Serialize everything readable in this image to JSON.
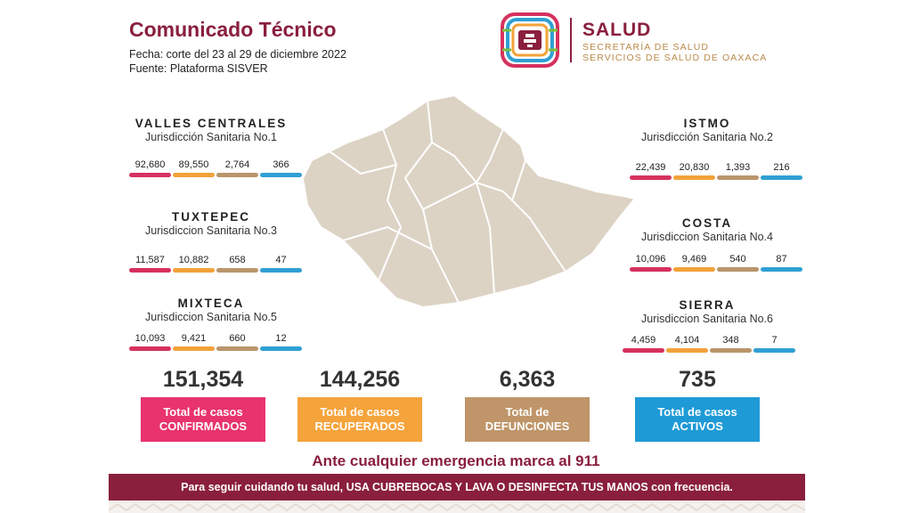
{
  "header": {
    "title": "Comunicado Técnico",
    "fecha": "Fecha: corte del 23 al 29 de diciembre 2022",
    "fuente": "Fuente: Plataforma SISVER"
  },
  "brand": {
    "name": "SALUD",
    "line1": "SECRETARÍA DE SALUD",
    "line2": "SERVICIOS DE SALUD DE OAXACA"
  },
  "regions": [
    {
      "name": "VALLES CENTRALES",
      "jurisdiction": "Jurisdicción Sanitaria No.1",
      "values": [
        "92,680",
        "89,550",
        "2,764",
        "366"
      ]
    },
    {
      "name": "TUXTEPEC",
      "jurisdiction": "Jurisdiccion Sanitaria No.3",
      "values": [
        "11,587",
        "10,882",
        "658",
        "47"
      ]
    },
    {
      "name": "MIXTECA",
      "jurisdiction": "Jurisdiccion Sanitaria No.5",
      "values": [
        "10,093",
        "9,421",
        "660",
        "12"
      ]
    },
    {
      "name": "ISTMO",
      "jurisdiction": "Jurisdicción Sanitaria No.2",
      "values": [
        "22,439",
        "20,830",
        "1,393",
        "216"
      ]
    },
    {
      "name": "COSTA",
      "jurisdiction": "Jurisdiccion Sanitaria No.4",
      "values": [
        "10,096",
        "9,469",
        "540",
        "87"
      ]
    },
    {
      "name": "SIERRA",
      "jurisdiction": "Jurisdiccion Sanitaria No.6",
      "values": [
        "4,459",
        "4,104",
        "348",
        "7"
      ]
    }
  ],
  "totals": [
    {
      "value": "151,354",
      "line1": "Total de casos",
      "line2": "CONFIRMADOS",
      "color": "#e8336d"
    },
    {
      "value": "144,256",
      "line1": "Total de casos",
      "line2": "RECUPERADOS",
      "color": "#f5a33b"
    },
    {
      "value": "6,363",
      "line1": "Total de",
      "line2": "DEFUNCIONES",
      "color": "#bf9569"
    },
    {
      "value": "735",
      "line1": "Total de casos",
      "line2": "ACTIVOS",
      "color": "#1e9ad6"
    }
  ],
  "emergency": "Ante cualquier emergencia marca al 911",
  "footer": "Para seguir cuidando tu salud, USA CUBREBOCAS Y LAVA O DESINFECTA TUS MANOS con frecuencia.",
  "icons": {
    "logo": "oaxaca-health-logo-icon",
    "map": "oaxaca-map-icon"
  }
}
